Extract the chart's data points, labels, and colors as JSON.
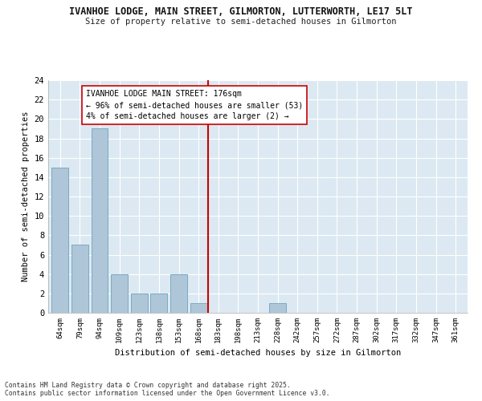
{
  "title1": "IVANHOE LODGE, MAIN STREET, GILMORTON, LUTTERWORTH, LE17 5LT",
  "title2": "Size of property relative to semi-detached houses in Gilmorton",
  "xlabel": "Distribution of semi-detached houses by size in Gilmorton",
  "ylabel": "Number of semi-detached properties",
  "categories": [
    "64sqm",
    "79sqm",
    "94sqm",
    "109sqm",
    "123sqm",
    "138sqm",
    "153sqm",
    "168sqm",
    "183sqm",
    "198sqm",
    "213sqm",
    "228sqm",
    "242sqm",
    "257sqm",
    "272sqm",
    "287sqm",
    "302sqm",
    "317sqm",
    "332sqm",
    "347sqm",
    "361sqm"
  ],
  "values": [
    15,
    7,
    19,
    4,
    2,
    2,
    4,
    1,
    0,
    0,
    0,
    1,
    0,
    0,
    0,
    0,
    0,
    0,
    0,
    0,
    0
  ],
  "bar_color": "#aec6d8",
  "bar_edge_color": "#7aaac0",
  "ref_line_color": "#cc0000",
  "annotation_label": "IVANHOE LODGE MAIN STREET: 176sqm",
  "annotation_line1": "← 96% of semi-detached houses are smaller (53)",
  "annotation_line2": "4% of semi-detached houses are larger (2) →",
  "ylim": [
    0,
    24
  ],
  "yticks": [
    0,
    2,
    4,
    6,
    8,
    10,
    12,
    14,
    16,
    18,
    20,
    22,
    24
  ],
  "footnote1": "Contains HM Land Registry data © Crown copyright and database right 2025.",
  "footnote2": "Contains public sector information licensed under the Open Government Licence v3.0.",
  "fig_bg_color": "#ffffff",
  "plot_bg_color": "#dce9f2"
}
